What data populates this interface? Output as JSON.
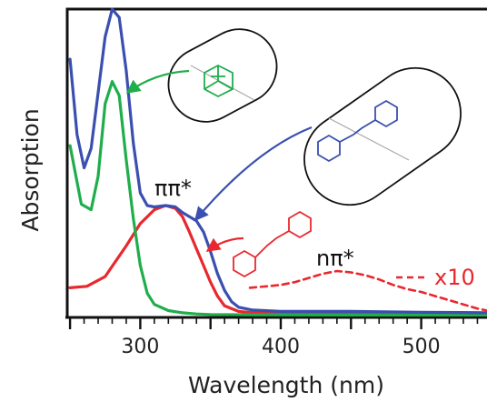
{
  "chart_data": {
    "type": "line",
    "xlabel": "Wavelength (nm)",
    "ylabel": "Absorption",
    "xlim": [
      248,
      552
    ],
    "ylim": [
      0,
      1.1
    ],
    "x_ticks": [
      300,
      400,
      500
    ],
    "x_tick_labels": [
      "300",
      "400",
      "500"
    ],
    "grid": false,
    "colors": {
      "red": "#e8282e",
      "green": "#1fae4b",
      "blue": "#3a4fb0"
    },
    "series": [
      {
        "color": "#e8282e",
        "x": [
          250,
          262,
          275,
          290,
          300,
          310,
          318,
          325,
          330,
          335,
          340,
          345,
          350,
          355,
          360,
          370,
          380,
          400,
          450,
          500,
          550
        ],
        "y": [
          0.1,
          0.105,
          0.14,
          0.25,
          0.33,
          0.38,
          0.395,
          0.385,
          0.355,
          0.3,
          0.24,
          0.18,
          0.12,
          0.07,
          0.035,
          0.015,
          0.01,
          0.008,
          0.008,
          0.006,
          0.005
        ]
      },
      {
        "color": "#1fae4b",
        "x": [
          250,
          258,
          265,
          270,
          275,
          280,
          285,
          290,
          295,
          300,
          305,
          310,
          320,
          330,
          340,
          350,
          380,
          450,
          550
        ],
        "y": [
          0.61,
          0.4,
          0.38,
          0.5,
          0.76,
          0.84,
          0.79,
          0.56,
          0.35,
          0.18,
          0.08,
          0.04,
          0.018,
          0.01,
          0.006,
          0.004,
          0.003,
          0.002,
          0.002
        ]
      },
      {
        "color": "#3a4fb0",
        "x": [
          250,
          255,
          260,
          265,
          270,
          275,
          280,
          285,
          290,
          295,
          300,
          305,
          310,
          318,
          325,
          330,
          335,
          340,
          345,
          350,
          355,
          360,
          365,
          370,
          380,
          400,
          450,
          500,
          550
        ],
        "y": [
          0.92,
          0.65,
          0.53,
          0.6,
          0.8,
          1.0,
          1.1,
          1.07,
          0.88,
          0.62,
          0.44,
          0.395,
          0.39,
          0.395,
          0.39,
          0.37,
          0.355,
          0.34,
          0.3,
          0.23,
          0.15,
          0.09,
          0.05,
          0.03,
          0.02,
          0.015,
          0.015,
          0.012,
          0.01
        ]
      },
      {
        "name": "x10",
        "color": "#e8282e",
        "dashed": true,
        "x": [
          378,
          390,
          400,
          410,
          420,
          430,
          440,
          450,
          460,
          470,
          480,
          490,
          500,
          510,
          520,
          530,
          540,
          550
        ],
        "y": [
          0.1,
          0.105,
          0.11,
          0.12,
          0.135,
          0.15,
          0.16,
          0.155,
          0.145,
          0.13,
          0.11,
          0.095,
          0.085,
          0.07,
          0.055,
          0.04,
          0.025,
          0.015
        ]
      }
    ],
    "annotations": {
      "pipi": "ππ*",
      "npi": "nπ*",
      "x10": "x10"
    }
  }
}
